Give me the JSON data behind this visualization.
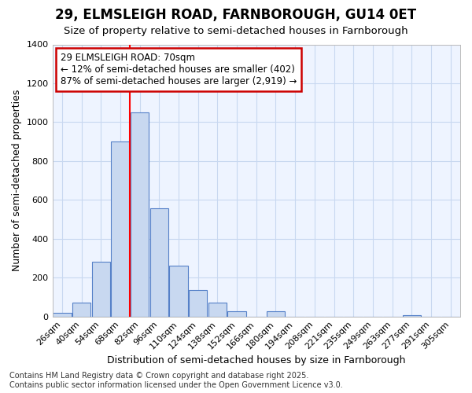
{
  "title1": "29, ELMSLEIGH ROAD, FARNBOROUGH, GU14 0ET",
  "title2": "Size of property relative to semi-detached houses in Farnborough",
  "xlabel": "Distribution of semi-detached houses by size in Farnborough",
  "ylabel": "Number of semi-detached properties",
  "categories": [
    "26sqm",
    "40sqm",
    "54sqm",
    "68sqm",
    "82sqm",
    "96sqm",
    "110sqm",
    "124sqm",
    "138sqm",
    "152sqm",
    "166sqm",
    "180sqm",
    "194sqm",
    "208sqm",
    "221sqm",
    "235sqm",
    "249sqm",
    "263sqm",
    "277sqm",
    "291sqm",
    "305sqm"
  ],
  "values": [
    20,
    70,
    280,
    900,
    1050,
    555,
    260,
    135,
    70,
    25,
    0,
    25,
    0,
    0,
    0,
    0,
    0,
    0,
    5,
    0,
    0
  ],
  "bar_color": "#c8d8f0",
  "bar_edge_color": "#5580c8",
  "background_color": "#ffffff",
  "plot_bg_color": "#eef4ff",
  "grid_color": "#c8d8f0",
  "red_line_x": 3.5,
  "annotation_text": "29 ELMSLEIGH ROAD: 70sqm\n← 12% of semi-detached houses are smaller (402)\n87% of semi-detached houses are larger (2,919) →",
  "annotation_box_color": "#ffffff",
  "annotation_box_edge_color": "#cc0000",
  "ylim": [
    0,
    1400
  ],
  "yticks": [
    0,
    200,
    400,
    600,
    800,
    1000,
    1200,
    1400
  ],
  "footer_text": "Contains HM Land Registry data © Crown copyright and database right 2025.\nContains public sector information licensed under the Open Government Licence v3.0.",
  "title_fontsize": 12,
  "subtitle_fontsize": 9.5,
  "axis_label_fontsize": 9,
  "tick_fontsize": 8,
  "footer_fontsize": 7,
  "annotation_fontsize": 8.5
}
